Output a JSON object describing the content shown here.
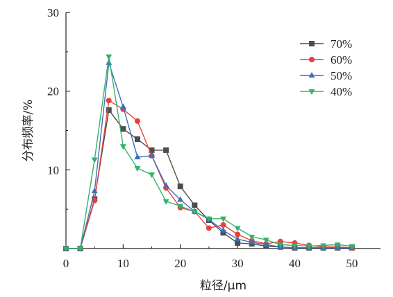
{
  "chart_data": {
    "type": "line",
    "title": "",
    "xlabel": "粒径/μm",
    "ylabel": "分布频率/%",
    "xlim": [
      0,
      55
    ],
    "ylim": [
      0,
      30
    ],
    "x_ticks": [
      0,
      10,
      20,
      30,
      40,
      50
    ],
    "y_ticks": [
      10,
      20,
      30
    ],
    "grid": false,
    "legend_position": "top-right",
    "series": [
      {
        "name": "70%",
        "color": "#4d4d4d",
        "marker": "square",
        "x": [
          0,
          2.5,
          5,
          7.5,
          10,
          12.5,
          15,
          17.5,
          20,
          22.5,
          25,
          27.5,
          30,
          32.5,
          35,
          37.5,
          40,
          42.5,
          45,
          47.5,
          50
        ],
        "y": [
          0,
          0,
          6.3,
          17.6,
          15.2,
          13.9,
          12.5,
          12.5,
          7.9,
          5.5,
          3.6,
          2.0,
          0.7,
          0.6,
          0.3,
          0.2,
          0.1,
          0.1,
          0.1,
          0.1,
          0.1
        ]
      },
      {
        "name": "60%",
        "color": "#e8413c",
        "marker": "circle",
        "x": [
          0,
          2.5,
          5,
          7.5,
          10,
          12.5,
          15,
          17.5,
          20,
          22.5,
          25,
          27.5,
          30,
          32.5,
          35,
          37.5,
          40,
          42.5,
          45,
          47.5,
          50
        ],
        "y": [
          0,
          0,
          6.1,
          18.8,
          17.7,
          16.2,
          11.8,
          7.7,
          5.2,
          4.7,
          2.6,
          3.0,
          1.8,
          1.0,
          0.6,
          0.9,
          0.7,
          0.4,
          0.2,
          0.2,
          0.1
        ]
      },
      {
        "name": "50%",
        "color": "#3e6fb9",
        "marker": "triangle-up",
        "x": [
          0,
          2.5,
          5,
          7.5,
          10,
          12.5,
          15,
          17.5,
          20,
          22.5,
          25,
          27.5,
          30,
          32.5,
          35,
          37.5,
          40,
          42.5,
          45,
          47.5,
          50
        ],
        "y": [
          0,
          0,
          7.3,
          23.6,
          18.0,
          11.6,
          11.8,
          8.0,
          6.2,
          4.7,
          3.7,
          2.3,
          1.2,
          0.8,
          0.5,
          0.2,
          0.1,
          0.1,
          0.1,
          0.1,
          0.1
        ]
      },
      {
        "name": "40%",
        "color": "#35b26a",
        "marker": "triangle-down",
        "x": [
          0,
          2.5,
          5,
          7.5,
          10,
          12.5,
          15,
          17.5,
          20,
          22.5,
          25,
          27.5,
          30,
          32.5,
          35,
          37.5,
          40,
          42.5,
          45,
          47.5,
          50
        ],
        "y": [
          0,
          0,
          11.3,
          24.4,
          13.0,
          10.2,
          9.4,
          6.0,
          5.4,
          4.7,
          3.8,
          3.8,
          2.6,
          1.5,
          1.1,
          0.5,
          0.4,
          0.3,
          0.4,
          0.5,
          0.3
        ]
      }
    ]
  }
}
